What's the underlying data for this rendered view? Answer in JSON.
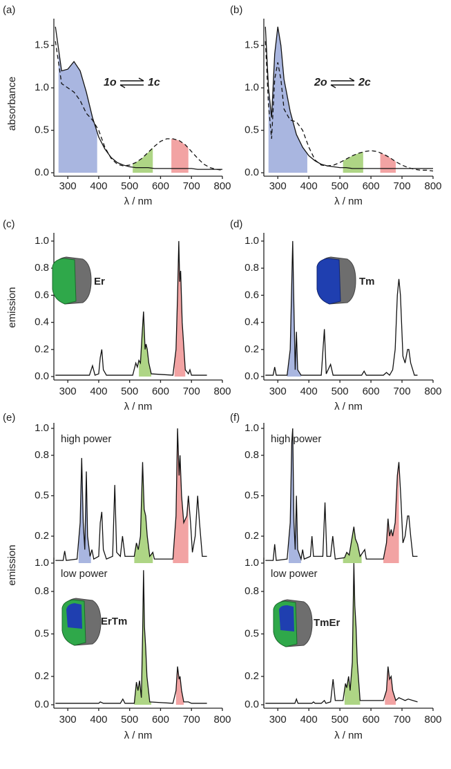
{
  "chart_data": [
    {
      "type": "line",
      "label": "(a)",
      "ylabel": "absorbance",
      "xlabel": "λ / nm",
      "annotation": {
        "from": "1o",
        "to": "1c"
      },
      "x": [
        260,
        280,
        300,
        320,
        340,
        360,
        380,
        400,
        420,
        440,
        460,
        480,
        500,
        520,
        540,
        560,
        580,
        600,
        620,
        640,
        660,
        680,
        700,
        720,
        740,
        760,
        780,
        800
      ],
      "series": [
        {
          "color": "#111111",
          "dash": false,
          "values": [
            1.72,
            1.2,
            1.22,
            1.31,
            1.2,
            0.95,
            0.65,
            0.42,
            0.28,
            0.18,
            0.12,
            0.09,
            0.07,
            0.06,
            0.06,
            0.06,
            0.05,
            0.05,
            0.05,
            0.05,
            0.05,
            0.05,
            0.05,
            0.04,
            0.04,
            0.04,
            0.04,
            0.04
          ]
        },
        {
          "color": "#111111",
          "dash": true,
          "values": [
            1.55,
            1.05,
            1.0,
            0.95,
            0.85,
            0.7,
            0.62,
            0.5,
            0.3,
            0.17,
            0.1,
            0.08,
            0.09,
            0.12,
            0.17,
            0.24,
            0.31,
            0.37,
            0.4,
            0.4,
            0.38,
            0.33,
            0.25,
            0.17,
            0.1,
            0.06,
            0.04,
            0.03
          ]
        }
      ],
      "fills": [
        {
          "series": 0,
          "from": 270,
          "to": 395,
          "color": "#a9b6e0"
        },
        {
          "series": 1,
          "from": 510,
          "to": 575,
          "color": "#aed585"
        },
        {
          "series": 1,
          "from": 635,
          "to": 690,
          "color": "#f2a3a3"
        }
      ],
      "xlim": [
        255,
        800
      ],
      "xticks": [
        300,
        400,
        500,
        600,
        700,
        800
      ],
      "ylim": [
        0,
        1.75
      ],
      "yticks": [
        {
          "value": 0,
          "label": "0.0"
        },
        0.5,
        {
          "value": 1,
          "label": "1.0"
        },
        1.5
      ]
    },
    {
      "type": "line",
      "label": "(b)",
      "xlabel": "λ / nm",
      "annotation": {
        "from": "2o",
        "to": "2c"
      },
      "x": [
        260,
        270,
        280,
        290,
        300,
        310,
        320,
        340,
        360,
        380,
        400,
        420,
        440,
        460,
        480,
        500,
        520,
        540,
        560,
        580,
        600,
        620,
        640,
        660,
        680,
        700,
        720,
        740,
        760,
        780,
        800
      ],
      "series": [
        {
          "color": "#111111",
          "dash": false,
          "values": [
            1.72,
            1.0,
            0.65,
            1.4,
            1.72,
            1.5,
            1.1,
            0.72,
            0.45,
            0.3,
            0.2,
            0.14,
            0.1,
            0.08,
            0.07,
            0.06,
            0.06,
            0.05,
            0.05,
            0.05,
            0.05,
            0.05,
            0.05,
            0.05,
            0.05,
            0.05,
            0.05,
            0.05,
            0.05,
            0.05,
            0.05
          ]
        },
        {
          "color": "#111111",
          "dash": true,
          "values": [
            1.55,
            0.8,
            0.4,
            1.1,
            1.3,
            1.1,
            0.75,
            0.62,
            0.6,
            0.5,
            0.3,
            0.15,
            0.09,
            0.08,
            0.09,
            0.12,
            0.16,
            0.2,
            0.23,
            0.25,
            0.26,
            0.25,
            0.22,
            0.18,
            0.13,
            0.09,
            0.06,
            0.04,
            0.03,
            0.03,
            0.02
          ]
        }
      ],
      "fills": [
        {
          "series": 0,
          "from": 270,
          "to": 395,
          "color": "#a9b6e0"
        },
        {
          "series": 1,
          "from": 510,
          "to": 575,
          "color": "#aed585"
        },
        {
          "series": 1,
          "from": 630,
          "to": 680,
          "color": "#f2a3a3"
        }
      ],
      "xlim": [
        255,
        800
      ],
      "xticks": [
        300,
        400,
        500,
        600,
        700,
        800
      ],
      "ylim": [
        0,
        1.75
      ],
      "yticks": [
        {
          "value": 0,
          "label": "0.0"
        },
        0.5,
        {
          "value": 1,
          "label": "1.0"
        },
        1.5
      ]
    },
    {
      "type": "line",
      "label": "(c)",
      "ylabel": "emission",
      "xlabel": "λ / nm",
      "icon": "Er",
      "x": [
        260,
        370,
        380,
        388,
        400,
        405,
        410,
        415,
        425,
        510,
        520,
        525,
        530,
        535,
        540,
        545,
        550,
        553,
        557,
        562,
        570,
        640,
        650,
        655,
        659,
        662,
        665,
        670,
        680,
        690,
        695,
        700,
        750
      ],
      "series": [
        {
          "color": "#111111",
          "dash": false,
          "values": [
            0.01,
            0.01,
            0.08,
            0.01,
            0.02,
            0.14,
            0.2,
            0.05,
            0.01,
            0.01,
            0.1,
            0.07,
            0.12,
            0.1,
            0.3,
            0.48,
            0.2,
            0.24,
            0.2,
            0.1,
            0.02,
            0.01,
            0.2,
            0.6,
            1.0,
            0.7,
            0.78,
            0.4,
            0.05,
            0.02,
            0.05,
            0.01,
            0.01
          ]
        }
      ],
      "fills": [
        {
          "series": 0,
          "from": 530,
          "to": 570,
          "color": "#aed585"
        },
        {
          "series": 0,
          "from": 645,
          "to": 680,
          "color": "#f2a3a3"
        }
      ],
      "xlim": [
        255,
        800
      ],
      "xticks": [
        300,
        400,
        500,
        600,
        700,
        800
      ],
      "ylim": [
        0,
        1.02
      ],
      "yticks": [
        {
          "value": 0,
          "label": "0.0"
        },
        0.2,
        0.4,
        0.6,
        0.8,
        {
          "value": 1,
          "label": "1.0"
        }
      ]
    },
    {
      "type": "line",
      "label": "(d)",
      "xlabel": "λ / nm",
      "icon": "Tm",
      "x": [
        260,
        285,
        290,
        295,
        330,
        340,
        345,
        348,
        352,
        356,
        360,
        364,
        375,
        440,
        450,
        456,
        470,
        478,
        570,
        578,
        585,
        640,
        650,
        660,
        670,
        678,
        685,
        690,
        695,
        703,
        710,
        718,
        722,
        728,
        740,
        750
      ],
      "series": [
        {
          "color": "#111111",
          "dash": false,
          "values": [
            0.01,
            0.01,
            0.07,
            0.01,
            0.01,
            0.2,
            0.7,
            1.0,
            0.5,
            0.05,
            0.33,
            0.05,
            0.01,
            0.01,
            0.35,
            0.02,
            0.09,
            0.01,
            0.01,
            0.04,
            0.01,
            0.01,
            0.03,
            0.01,
            0.05,
            0.2,
            0.6,
            0.72,
            0.6,
            0.15,
            0.1,
            0.2,
            0.2,
            0.1,
            0.01,
            0.01
          ]
        }
      ],
      "fills": [
        {
          "series": 0,
          "from": 330,
          "to": 375,
          "color": "#a9b6e0"
        }
      ],
      "xlim": [
        255,
        800
      ],
      "xticks": [
        300,
        400,
        500,
        600,
        700,
        800
      ],
      "ylim": [
        0,
        1.02
      ],
      "yticks": [
        {
          "value": 0,
          "label": "0.0"
        },
        0.2,
        0.4,
        0.6,
        0.8,
        {
          "value": 1,
          "label": "1.0"
        }
      ]
    },
    {
      "type": "line",
      "label": "(e)",
      "ylabel": "emission",
      "note": "high power",
      "x": [
        260,
        285,
        290,
        295,
        330,
        340,
        345,
        350,
        355,
        360,
        364,
        372,
        378,
        384,
        400,
        405,
        410,
        415,
        425,
        445,
        452,
        458,
        470,
        477,
        485,
        515,
        522,
        528,
        535,
        542,
        547,
        552,
        557,
        565,
        575,
        580,
        640,
        650,
        655,
        660,
        663,
        668,
        675,
        685,
        690,
        697,
        703,
        712,
        720,
        726,
        735,
        750
      ],
      "series": [
        {
          "color": "#111111",
          "dash": false,
          "values": [
            0.02,
            0.02,
            0.09,
            0.02,
            0.03,
            0.3,
            0.78,
            0.3,
            0.1,
            0.68,
            0.2,
            0.05,
            0.1,
            0.03,
            0.05,
            0.3,
            0.38,
            0.1,
            0.03,
            0.05,
            0.58,
            0.08,
            0.05,
            0.2,
            0.05,
            0.05,
            0.15,
            0.1,
            0.2,
            0.75,
            0.4,
            0.35,
            0.2,
            0.05,
            0.08,
            0.03,
            0.03,
            0.35,
            1.0,
            0.65,
            0.8,
            0.5,
            0.3,
            0.35,
            0.5,
            0.3,
            0.08,
            0.2,
            0.5,
            0.3,
            0.05,
            0.05
          ]
        }
      ],
      "fills": [
        {
          "series": 0,
          "from": 335,
          "to": 375,
          "color": "#a9b6e0"
        },
        {
          "series": 0,
          "from": 515,
          "to": 575,
          "color": "#aed585"
        },
        {
          "series": 0,
          "from": 640,
          "to": 690,
          "color": "#f2a3a3"
        }
      ],
      "xlim": [
        255,
        800
      ],
      "ylim": [
        0,
        1
      ],
      "yticks": [
        0.2,
        0.5,
        0.8,
        {
          "value": 1,
          "label": "1.0"
        }
      ]
    },
    {
      "type": "line",
      "note": "low power",
      "xlabel": "λ / nm",
      "icon": "ErTm",
      "x": [
        260,
        400,
        405,
        415,
        470,
        478,
        485,
        515,
        522,
        527,
        532,
        538,
        542,
        545,
        548,
        552,
        556,
        565,
        640,
        650,
        655,
        660,
        663,
        668,
        675,
        690,
        700,
        750
      ],
      "series": [
        {
          "color": "#111111",
          "dash": false,
          "values": [
            0.01,
            0.01,
            0.02,
            0.01,
            0.01,
            0.04,
            0.01,
            0.01,
            0.16,
            0.1,
            0.17,
            0.05,
            0.5,
            0.95,
            0.55,
            0.4,
            0.2,
            0.02,
            0.01,
            0.1,
            0.27,
            0.18,
            0.2,
            0.1,
            0.02,
            0.02,
            0.01,
            0.01
          ]
        }
      ],
      "fills": [
        {
          "series": 0,
          "from": 515,
          "to": 570,
          "color": "#aed585"
        },
        {
          "series": 0,
          "from": 650,
          "to": 675,
          "color": "#f2a3a3"
        }
      ],
      "xlim": [
        255,
        800
      ],
      "xticks": [
        300,
        400,
        500,
        600,
        700,
        800
      ],
      "ylim": [
        0,
        1
      ],
      "yticks": [
        {
          "value": 0,
          "label": "0.0"
        },
        0.2,
        0.5,
        0.8,
        {
          "value": 1,
          "label": "1.0"
        }
      ]
    },
    {
      "type": "line",
      "label": "(f)",
      "note": "high power",
      "x": [
        260,
        285,
        290,
        295,
        330,
        340,
        345,
        348,
        352,
        356,
        360,
        364,
        375,
        380,
        385,
        405,
        410,
        415,
        445,
        452,
        458,
        470,
        477,
        485,
        515,
        522,
        530,
        540,
        545,
        550,
        557,
        565,
        580,
        585,
        640,
        650,
        655,
        660,
        665,
        670,
        678,
        685,
        690,
        696,
        703,
        710,
        718,
        722,
        728,
        735,
        750
      ],
      "series": [
        {
          "color": "#111111",
          "dash": false,
          "values": [
            0.02,
            0.02,
            0.14,
            0.02,
            0.03,
            0.3,
            0.9,
            1.0,
            0.3,
            0.1,
            0.5,
            0.1,
            0.03,
            0.1,
            0.03,
            0.05,
            0.2,
            0.05,
            0.05,
            0.45,
            0.05,
            0.05,
            0.2,
            0.03,
            0.04,
            0.08,
            0.06,
            0.2,
            0.27,
            0.18,
            0.14,
            0.05,
            0.1,
            0.03,
            0.03,
            0.15,
            0.33,
            0.2,
            0.25,
            0.2,
            0.3,
            0.65,
            0.75,
            0.5,
            0.15,
            0.2,
            0.35,
            0.35,
            0.2,
            0.05,
            0.05
          ]
        }
      ],
      "fills": [
        {
          "series": 0,
          "from": 335,
          "to": 375,
          "color": "#a9b6e0"
        },
        {
          "series": 0,
          "from": 510,
          "to": 570,
          "color": "#aed585"
        },
        {
          "series": 0,
          "from": 640,
          "to": 690,
          "color": "#f2a3a3"
        }
      ],
      "xlim": [
        255,
        800
      ],
      "ylim": [
        0,
        1
      ],
      "yticks": [
        0.2,
        0.5,
        0.8,
        {
          "value": 1,
          "label": "1.0"
        }
      ]
    },
    {
      "type": "line",
      "note": "low power",
      "xlabel": "λ / nm",
      "icon": "TmEr",
      "x": [
        260,
        355,
        360,
        365,
        410,
        415,
        420,
        440,
        450,
        455,
        470,
        478,
        485,
        510,
        518,
        522,
        528,
        533,
        540,
        545,
        548,
        552,
        556,
        565,
        580,
        640,
        650,
        655,
        660,
        665,
        670,
        680,
        690,
        700,
        710,
        720,
        750
      ],
      "series": [
        {
          "color": "#111111",
          "dash": false,
          "values": [
            0.01,
            0.01,
            0.04,
            0.01,
            0.01,
            0.02,
            0.01,
            0.01,
            0.03,
            0.01,
            0.02,
            0.18,
            0.03,
            0.03,
            0.15,
            0.12,
            0.2,
            0.1,
            0.3,
            1.0,
            0.7,
            0.55,
            0.3,
            0.03,
            0.03,
            0.03,
            0.1,
            0.27,
            0.18,
            0.2,
            0.1,
            0.03,
            0.05,
            0.04,
            0.03,
            0.04,
            0.02
          ]
        }
      ],
      "fills": [
        {
          "series": 0,
          "from": 515,
          "to": 565,
          "color": "#aed585"
        },
        {
          "series": 0,
          "from": 645,
          "to": 680,
          "color": "#f2a3a3"
        }
      ],
      "xlim": [
        255,
        800
      ],
      "xticks": [
        300,
        400,
        500,
        600,
        700,
        800
      ],
      "ylim": [
        0,
        1
      ],
      "yticks": [
        {
          "value": 0,
          "label": "0.0"
        },
        0.2,
        0.5,
        0.8,
        {
          "value": 1,
          "label": "1.0"
        }
      ]
    }
  ]
}
